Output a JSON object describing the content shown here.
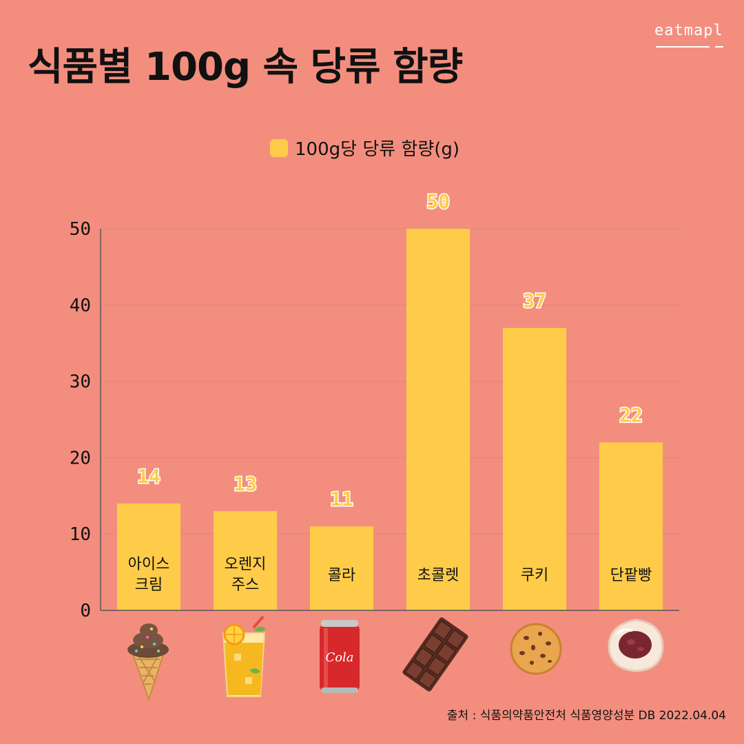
{
  "title": "식품별 100g 속 당류 함량",
  "brand": "eatmapl",
  "source": "출처 : 식품의약품안전처 식품영양성분 DB 2022.04.04",
  "colors": {
    "background": "#f38e7e",
    "bar": "#ffcc4a",
    "grid": "#d98a80",
    "axis": "#555555"
  },
  "chart_data": {
    "type": "bar",
    "categories": [
      [
        "아이스",
        "크림"
      ],
      [
        "오렌지",
        "주스"
      ],
      [
        "콜라"
      ],
      [
        "초콜렛"
      ],
      [
        "쿠키"
      ],
      [
        "단팥빵"
      ]
    ],
    "series": [
      {
        "name": "100g당 당류 함량(g)",
        "values": [
          14,
          13,
          11,
          50,
          37,
          22
        ]
      }
    ],
    "ylim": [
      0,
      50
    ],
    "yticks": [
      0,
      10,
      20,
      30,
      40,
      50
    ],
    "grid": true,
    "legend": "top-center",
    "data_labels": true
  },
  "icons": [
    "ice-cream-cone-icon",
    "orange-juice-glass-icon",
    "cola-can-icon",
    "chocolate-bar-icon",
    "cookie-icon",
    "red-bean-bun-icon"
  ],
  "cola_can_text": "Cola"
}
